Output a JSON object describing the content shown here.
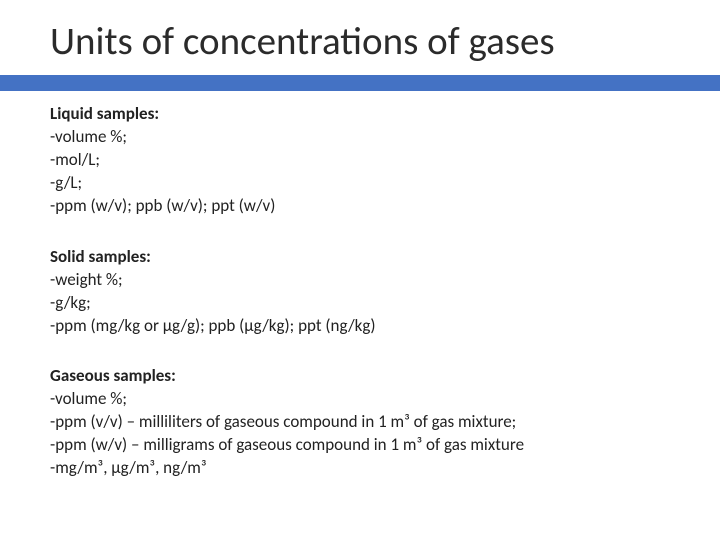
{
  "title": "Units of concentrations of gases",
  "colors": {
    "band": "#4472c4",
    "background": "#ffffff",
    "title_text": "#2b2b2b",
    "body_text": "#222222"
  },
  "typography": {
    "title_fontsize_pt": 30,
    "body_fontsize_pt": 13,
    "heading_weight": 700,
    "body_weight": 400
  },
  "sections": [
    {
      "heading": "Liquid samples:",
      "lines": [
        "-volume %;",
        "-mol/L;",
        "-g/L;",
        "-ppm (w/v); ppb (w/v); ppt (w/v)"
      ]
    },
    {
      "heading": "Solid samples:",
      "lines": [
        "-weight %;",
        "-g/kg;",
        "-ppm (mg/kg or μg/g); ppb (μg/kg); ppt (ng/kg)"
      ]
    },
    {
      "heading": "Gaseous samples:",
      "lines": [
        "-volume %;",
        "-ppm (v/v) – milliliters of gaseous compound in 1 m³ of gas mixture;",
        "-ppm (w/v) – milligrams of gaseous compound in 1 m³ of gas mixture",
        "-mg/m³, μg/m³, ng/m³"
      ]
    }
  ]
}
